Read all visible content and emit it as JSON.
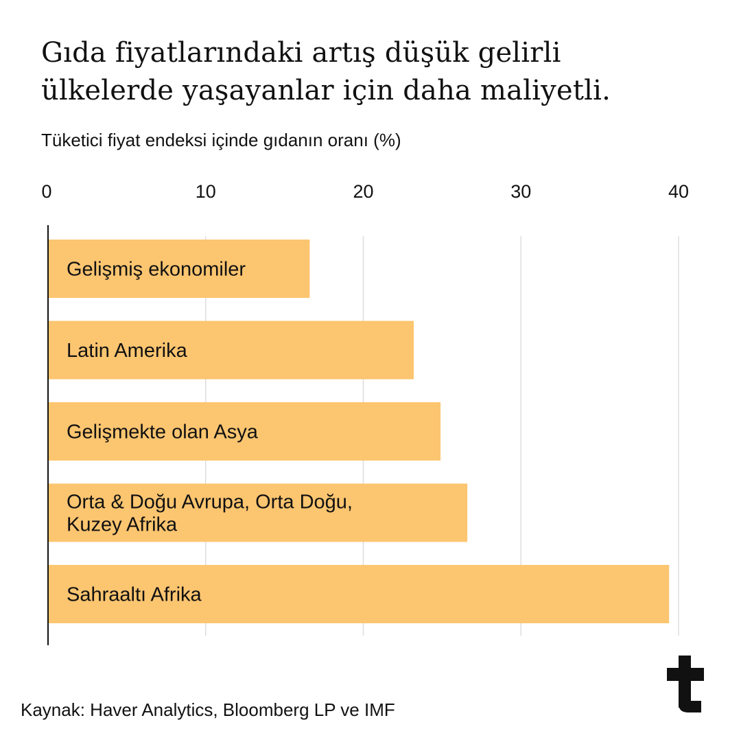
{
  "title_lines": [
    "Gıda fiyatlarındaki artış düşük gelirli",
    "ülkelerde yaşayanlar için daha maliyetli."
  ],
  "source": "Kaynak: Haver Analytics, Bloomberg LP ve IMF",
  "colors": {
    "bar": "#FCC570",
    "grid": "#DDDDDD",
    "axis": "#111111"
  },
  "chart_data": {
    "type": "bar",
    "orientation": "horizontal",
    "title": "Gıda fiyatlarındaki artış düşük gelirli ülkelerde yaşayanlar için daha maliyetli.",
    "subtitle": "Tüketici fiyat endeksi içinde gıdanın oranı (%)",
    "categories": [
      [
        "Gelişmiş ekonomiler"
      ],
      [
        "Latin Amerika"
      ],
      [
        "Gelişmekte olan Asya"
      ],
      [
        "Orta & Doğu Avrupa, Orta Doğu,",
        "Kuzey Afrika"
      ],
      [
        "Sahraaltı Afrika"
      ]
    ],
    "values": [
      16.6,
      23.2,
      24.9,
      26.6,
      39.4
    ],
    "xlim": [
      0,
      40
    ],
    "ticks": [
      0,
      10,
      20,
      30,
      40
    ],
    "tick_labels": [
      "0",
      "10",
      "20",
      "30",
      "40"
    ],
    "xlabel": "",
    "ylabel": "",
    "grid": true,
    "axis_position": "top"
  }
}
